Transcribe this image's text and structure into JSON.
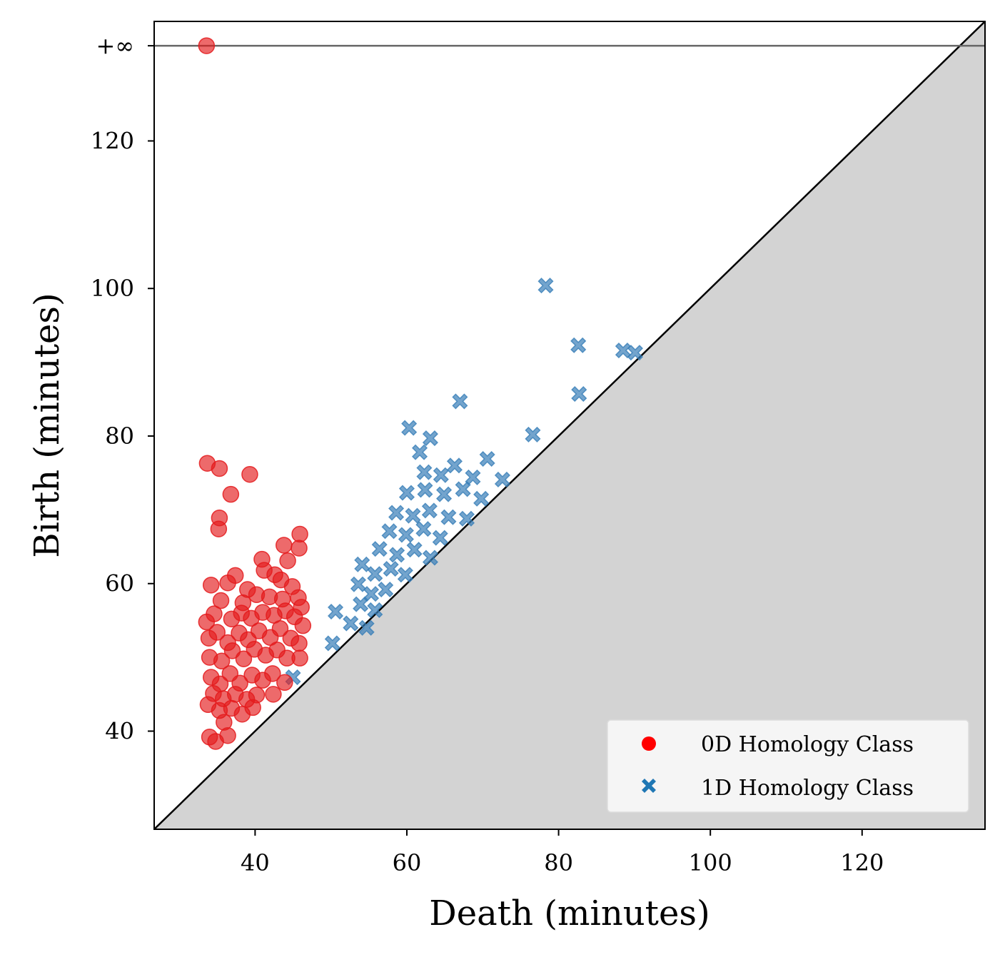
{
  "chart_data": {
    "type": "scatter",
    "title": "",
    "xlabel": "Death (minutes)",
    "ylabel": "Birth (minutes)",
    "xlim": [
      26.7,
      136.2
    ],
    "ylim": [
      26.7,
      136.2
    ],
    "x_ticks": [
      40,
      60,
      80,
      100,
      120
    ],
    "y_ticks": [
      40,
      60,
      80,
      100,
      120
    ],
    "infinity_label": "+∞",
    "infinity_line_value": 132.9,
    "diagonal": "birth = death, region below shaded",
    "legend_position": "lower-right",
    "grid": false,
    "colors": {
      "h0": "#e41a1c",
      "h1": "#377eb8",
      "diagonal_fill": "#d3d3d3",
      "infinity_line": "#666666"
    },
    "series": [
      {
        "name": "0D Homology Class",
        "marker": "circle",
        "points": [
          [
            33.6,
            132.9
          ],
          [
            33.7,
            76.3
          ],
          [
            35.3,
            75.6
          ],
          [
            39.3,
            74.8
          ],
          [
            36.8,
            72.1
          ],
          [
            35.3,
            68.9
          ],
          [
            35.2,
            67.4
          ],
          [
            45.9,
            66.7
          ],
          [
            45.8,
            64.8
          ],
          [
            43.8,
            65.2
          ],
          [
            40.9,
            63.3
          ],
          [
            44.3,
            63.1
          ],
          [
            37.4,
            61.1
          ],
          [
            41.2,
            61.8
          ],
          [
            42.6,
            61.2
          ],
          [
            43.4,
            60.5
          ],
          [
            34.2,
            59.8
          ],
          [
            36.4,
            60.1
          ],
          [
            39.0,
            59.2
          ],
          [
            44.9,
            59.6
          ],
          [
            45.7,
            58.1
          ],
          [
            35.5,
            57.7
          ],
          [
            38.4,
            57.4
          ],
          [
            40.2,
            58.5
          ],
          [
            41.9,
            58.2
          ],
          [
            43.6,
            57.9
          ],
          [
            46.1,
            56.8
          ],
          [
            33.6,
            54.8
          ],
          [
            34.6,
            55.9
          ],
          [
            36.9,
            55.2
          ],
          [
            38.2,
            56.0
          ],
          [
            39.5,
            55.3
          ],
          [
            41.0,
            56.1
          ],
          [
            42.5,
            55.7
          ],
          [
            44.0,
            56.3
          ],
          [
            45.2,
            55.5
          ],
          [
            46.3,
            54.3
          ],
          [
            33.9,
            52.6
          ],
          [
            35.0,
            53.4
          ],
          [
            36.4,
            52.0
          ],
          [
            37.9,
            53.3
          ],
          [
            39.1,
            52.4
          ],
          [
            40.5,
            53.6
          ],
          [
            42.0,
            52.7
          ],
          [
            43.3,
            53.9
          ],
          [
            44.7,
            52.6
          ],
          [
            45.8,
            51.9
          ],
          [
            34.0,
            50.0
          ],
          [
            35.6,
            49.5
          ],
          [
            37.0,
            50.9
          ],
          [
            38.5,
            49.8
          ],
          [
            39.9,
            51.1
          ],
          [
            41.4,
            50.3
          ],
          [
            42.9,
            51.0
          ],
          [
            44.2,
            49.9
          ],
          [
            45.9,
            49.9
          ],
          [
            34.2,
            47.3
          ],
          [
            35.4,
            46.4
          ],
          [
            36.7,
            47.8
          ],
          [
            38.0,
            46.5
          ],
          [
            39.6,
            47.6
          ],
          [
            41.0,
            46.9
          ],
          [
            42.3,
            47.8
          ],
          [
            43.9,
            46.6
          ],
          [
            34.5,
            45.1
          ],
          [
            35.8,
            44.4
          ],
          [
            37.4,
            45.0
          ],
          [
            38.9,
            44.3
          ],
          [
            40.2,
            44.9
          ],
          [
            42.4,
            45.0
          ],
          [
            33.8,
            43.6
          ],
          [
            35.3,
            42.8
          ],
          [
            36.9,
            43.1
          ],
          [
            38.3,
            42.3
          ],
          [
            39.7,
            43.2
          ],
          [
            35.9,
            41.2
          ],
          [
            34.0,
            39.2
          ],
          [
            34.8,
            38.6
          ],
          [
            36.4,
            39.4
          ]
        ]
      },
      {
        "name": "1D Homology Class",
        "marker": "x",
        "points": [
          [
            78.3,
            100.4
          ],
          [
            82.6,
            92.3
          ],
          [
            88.5,
            91.6
          ],
          [
            90.1,
            91.3
          ],
          [
            82.7,
            85.7
          ],
          [
            67.0,
            84.7
          ],
          [
            60.3,
            81.1
          ],
          [
            63.1,
            79.7
          ],
          [
            76.6,
            80.2
          ],
          [
            61.7,
            77.8
          ],
          [
            70.6,
            76.9
          ],
          [
            62.3,
            75.1
          ],
          [
            64.5,
            74.7
          ],
          [
            66.3,
            76.0
          ],
          [
            68.7,
            74.4
          ],
          [
            72.6,
            74.1
          ],
          [
            60.0,
            72.3
          ],
          [
            62.4,
            72.7
          ],
          [
            64.9,
            72.1
          ],
          [
            67.4,
            72.8
          ],
          [
            69.8,
            71.5
          ],
          [
            58.6,
            69.6
          ],
          [
            60.8,
            69.2
          ],
          [
            63.0,
            69.9
          ],
          [
            65.5,
            69.0
          ],
          [
            67.9,
            68.8
          ],
          [
            57.7,
            67.1
          ],
          [
            59.9,
            66.6
          ],
          [
            62.2,
            67.4
          ],
          [
            64.4,
            66.2
          ],
          [
            56.4,
            64.7
          ],
          [
            58.7,
            63.9
          ],
          [
            61.0,
            64.6
          ],
          [
            63.1,
            63.5
          ],
          [
            54.1,
            62.6
          ],
          [
            55.8,
            61.3
          ],
          [
            57.9,
            62.0
          ],
          [
            59.8,
            61.2
          ],
          [
            53.6,
            59.9
          ],
          [
            55.3,
            58.6
          ],
          [
            57.2,
            59.2
          ],
          [
            53.9,
            57.2
          ],
          [
            55.8,
            56.4
          ],
          [
            50.6,
            56.2
          ],
          [
            52.6,
            54.6
          ],
          [
            54.7,
            54.0
          ],
          [
            50.2,
            51.9
          ],
          [
            45.0,
            47.3
          ]
        ]
      }
    ]
  }
}
